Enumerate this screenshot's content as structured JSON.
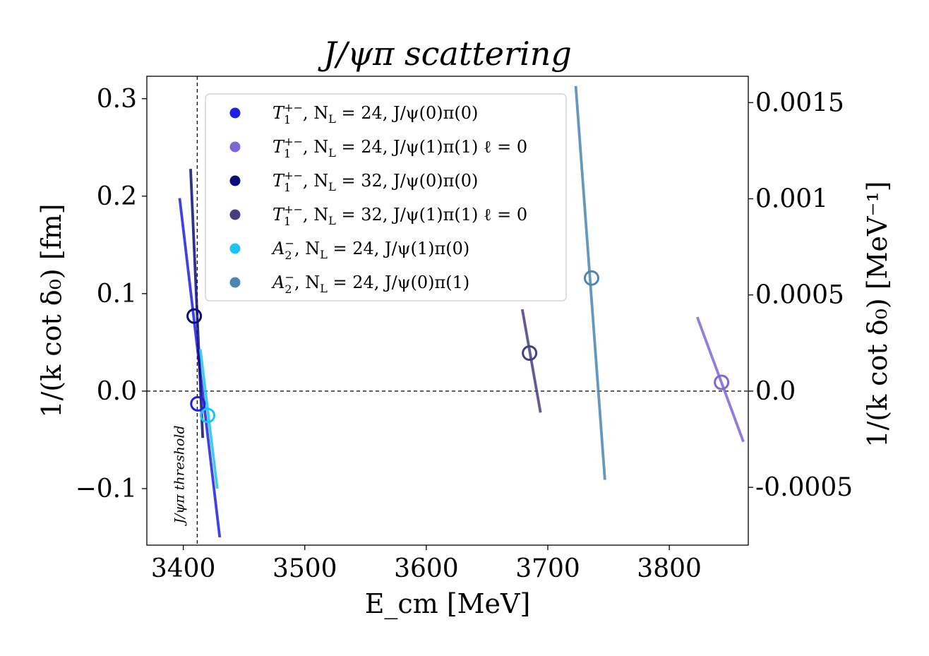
{
  "chart_data": {
    "type": "scatter",
    "title": "J/ψπ scattering",
    "xlabel": "E_cm [MeV]",
    "ylabel": "1/(k cot δ₀)  [fm]",
    "ylabel_right": "1/(k cot δ₀)  [MeV⁻¹]",
    "xlim": [
      3370,
      3865
    ],
    "ylim": [
      -0.158,
      0.323
    ],
    "x_ticks": [
      3400,
      3500,
      3600,
      3700,
      3800
    ],
    "x_tick_labels": [
      "3400",
      "3500",
      "3600",
      "3700",
      "3800"
    ],
    "y_ticks": [
      -0.1,
      0.0,
      0.1,
      0.2,
      0.3
    ],
    "y_tick_labels": [
      "−0.1",
      "0.0",
      "0.1",
      "0.2",
      "0.3"
    ],
    "y2_scale_fm_per_unit": 197.327,
    "y2_ticks": [
      -0.0005,
      0.0,
      0.0005,
      0.001,
      0.0015
    ],
    "y2_tick_labels": [
      "-0.0005",
      "0.0",
      "0.0005",
      "0.001",
      "0.0015"
    ],
    "threshold": {
      "x": 3411.5,
      "label": "J/ψπ threshold"
    },
    "zero_line": 0.0,
    "legend_position": "upper-left",
    "series": [
      {
        "name": "T1+−, NL = 24, J/ψ(0)π(0)",
        "legend": [
          "T",
          "1",
          "+−",
          ", N",
          "L",
          " = 24, J/ψ(0)π(0)"
        ],
        "color": "#1f1fe0",
        "point": [
          3412,
          -0.013
        ],
        "line": [
          [
            3397,
            0.198
          ],
          [
            3430,
            -0.15
          ]
        ]
      },
      {
        "name": "T1+−, NL = 24, J/ψ(1)π(1) ℓ = 0",
        "legend": [
          "T",
          "1",
          "+−",
          ", N",
          "L",
          " = 24, J/ψ(1)π(1) ℓ = 0"
        ],
        "color": "#7b68d6",
        "point": [
          3843,
          0.009
        ],
        "line": [
          [
            3823,
            0.076
          ],
          [
            3861,
            -0.052
          ]
        ]
      },
      {
        "name": "T1+−, NL = 32, J/ψ(0)π(0)",
        "legend": [
          "T",
          "1",
          "+−",
          ", N",
          "L",
          " = 32, J/ψ(0)π(0)"
        ],
        "color": "#0c0c7a",
        "point": [
          3409,
          0.077
        ],
        "line": [
          [
            3406,
            0.228
          ],
          [
            3416,
            -0.048
          ]
        ]
      },
      {
        "name": "T1+−, NL = 32, J/ψ(1)π(1) ℓ = 0",
        "legend": [
          "T",
          "1",
          "+−",
          ", N",
          "L",
          " = 32, J/ψ(1)π(1) ℓ = 0"
        ],
        "color": "#443f82",
        "point": [
          3685,
          0.039
        ],
        "line": [
          [
            3679,
            0.084
          ],
          [
            3694,
            -0.022
          ]
        ]
      },
      {
        "name": "A2−, NL = 24, J/ψ(1)π(0)",
        "legend": [
          "A",
          "2",
          "−",
          ", N",
          "L",
          " = 24, J/ψ(1)π(0)"
        ],
        "color": "#1ec3f0",
        "point": [
          3420,
          -0.025
        ],
        "line": [
          [
            3414,
            0.043
          ],
          [
            3428,
            -0.1
          ]
        ]
      },
      {
        "name": "A2−, NL = 24, J/ψ(0)π(1)",
        "legend": [
          "A",
          "2",
          "−",
          ", N",
          "L",
          " = 24, J/ψ(0)π(1)"
        ],
        "color": "#4a86b4",
        "point": [
          3736,
          0.116
        ],
        "line": [
          [
            3723,
            0.313
          ],
          [
            3747,
            -0.091
          ]
        ]
      }
    ]
  }
}
